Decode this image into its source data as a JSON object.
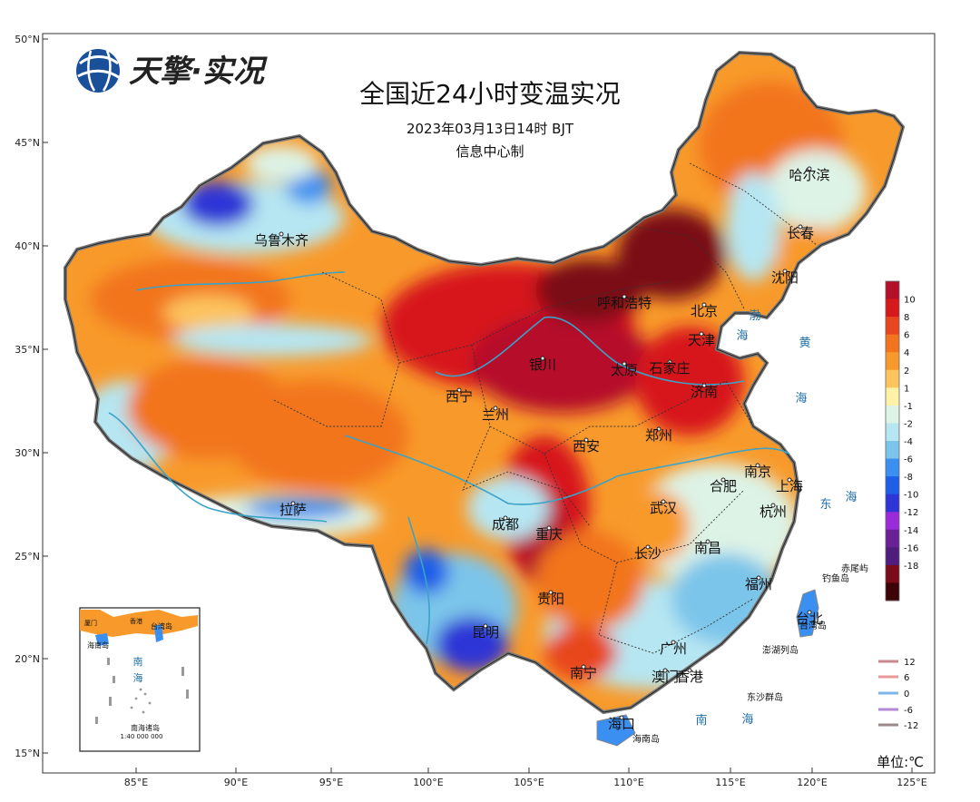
{
  "header": {
    "logo_text": "天擎·实况",
    "title": "全国近24小时变温实况",
    "datetime": "2023年03月13日14时 BJT",
    "producer": "信息中心制"
  },
  "axes": {
    "lat_labels": [
      "50°N",
      "45°N",
      "40°N",
      "35°N",
      "30°N",
      "25°N",
      "20°N",
      "15°N"
    ],
    "lon_labels": [
      "85°E",
      "90°E",
      "95°E",
      "100°E",
      "105°E",
      "110°E",
      "115°E",
      "120°E",
      "125°E"
    ]
  },
  "legend": {
    "labels": [
      "10",
      "8",
      "6",
      "4",
      "2",
      "1",
      "-1",
      "-2",
      "-4",
      "-6",
      "-8",
      "-10",
      "-12",
      "-14",
      "-16",
      "-18"
    ],
    "colors": [
      "#b5102a",
      "#d7191c",
      "#e8461e",
      "#f2741e",
      "#f89a2b",
      "#fdc35d",
      "#fff1a6",
      "#ddf3e6",
      "#b6e6f2",
      "#7cc5ea",
      "#3a8ff0",
      "#1e5fe8",
      "#2d35d6",
      "#9b2ad8",
      "#6a2196",
      "#4e1d7e",
      "#7a0b18",
      "#3d0408"
    ],
    "unit": "单位:℃"
  },
  "contour_legend": {
    "items": [
      {
        "label": "12",
        "color": "#c9888f"
      },
      {
        "label": "6",
        "color": "#e89a9a"
      },
      {
        "label": "0",
        "color": "#7fb6e8"
      },
      {
        "label": "-6",
        "color": "#b08ad6"
      },
      {
        "label": "-12",
        "color": "#9a8a8a"
      }
    ]
  },
  "cities": [
    {
      "name": "乌鲁木齐"
    },
    {
      "name": "哈尔滨"
    },
    {
      "name": "长春"
    },
    {
      "name": "沈阳"
    },
    {
      "name": "呼和浩特"
    },
    {
      "name": "北京"
    },
    {
      "name": "天津"
    },
    {
      "name": "太原"
    },
    {
      "name": "石家庄"
    },
    {
      "name": "银川"
    },
    {
      "name": "济南"
    },
    {
      "name": "西宁"
    },
    {
      "name": "兰州"
    },
    {
      "name": "郑州"
    },
    {
      "name": "西安"
    },
    {
      "name": "南京"
    },
    {
      "name": "合肥"
    },
    {
      "name": "上海"
    },
    {
      "name": "武汉"
    },
    {
      "name": "杭州"
    },
    {
      "name": "成都"
    },
    {
      "name": "重庆"
    },
    {
      "name": "长沙"
    },
    {
      "name": "南昌"
    },
    {
      "name": "福州"
    },
    {
      "name": "拉萨"
    },
    {
      "name": "贵阳"
    },
    {
      "name": "昆明"
    },
    {
      "name": "台北"
    },
    {
      "name": "广州"
    },
    {
      "name": "南宁"
    },
    {
      "name": "澳门"
    },
    {
      "name": "香港"
    },
    {
      "name": "海口"
    }
  ],
  "sea_labels": [
    {
      "name": "渤"
    },
    {
      "name": "海"
    },
    {
      "name": "黄"
    },
    {
      "name": "海"
    },
    {
      "name": "东"
    },
    {
      "name": "海"
    },
    {
      "name": "南"
    },
    {
      "name": "海"
    }
  ],
  "islands": [
    {
      "name": "赤尾屿"
    },
    {
      "name": "钓鱼岛"
    },
    {
      "name": "台湾岛"
    },
    {
      "name": "澎湖列岛"
    },
    {
      "name": "东沙群岛"
    },
    {
      "name": "海南岛"
    }
  ],
  "inset": {
    "labels": [
      {
        "name": "台湾岛"
      },
      {
        "name": "海南岛"
      },
      {
        "name": "南"
      },
      {
        "name": "海"
      },
      {
        "name": "南海诸岛"
      },
      {
        "name": "1:40 000 000"
      },
      {
        "name": "厦门"
      },
      {
        "name": "香港"
      }
    ]
  }
}
